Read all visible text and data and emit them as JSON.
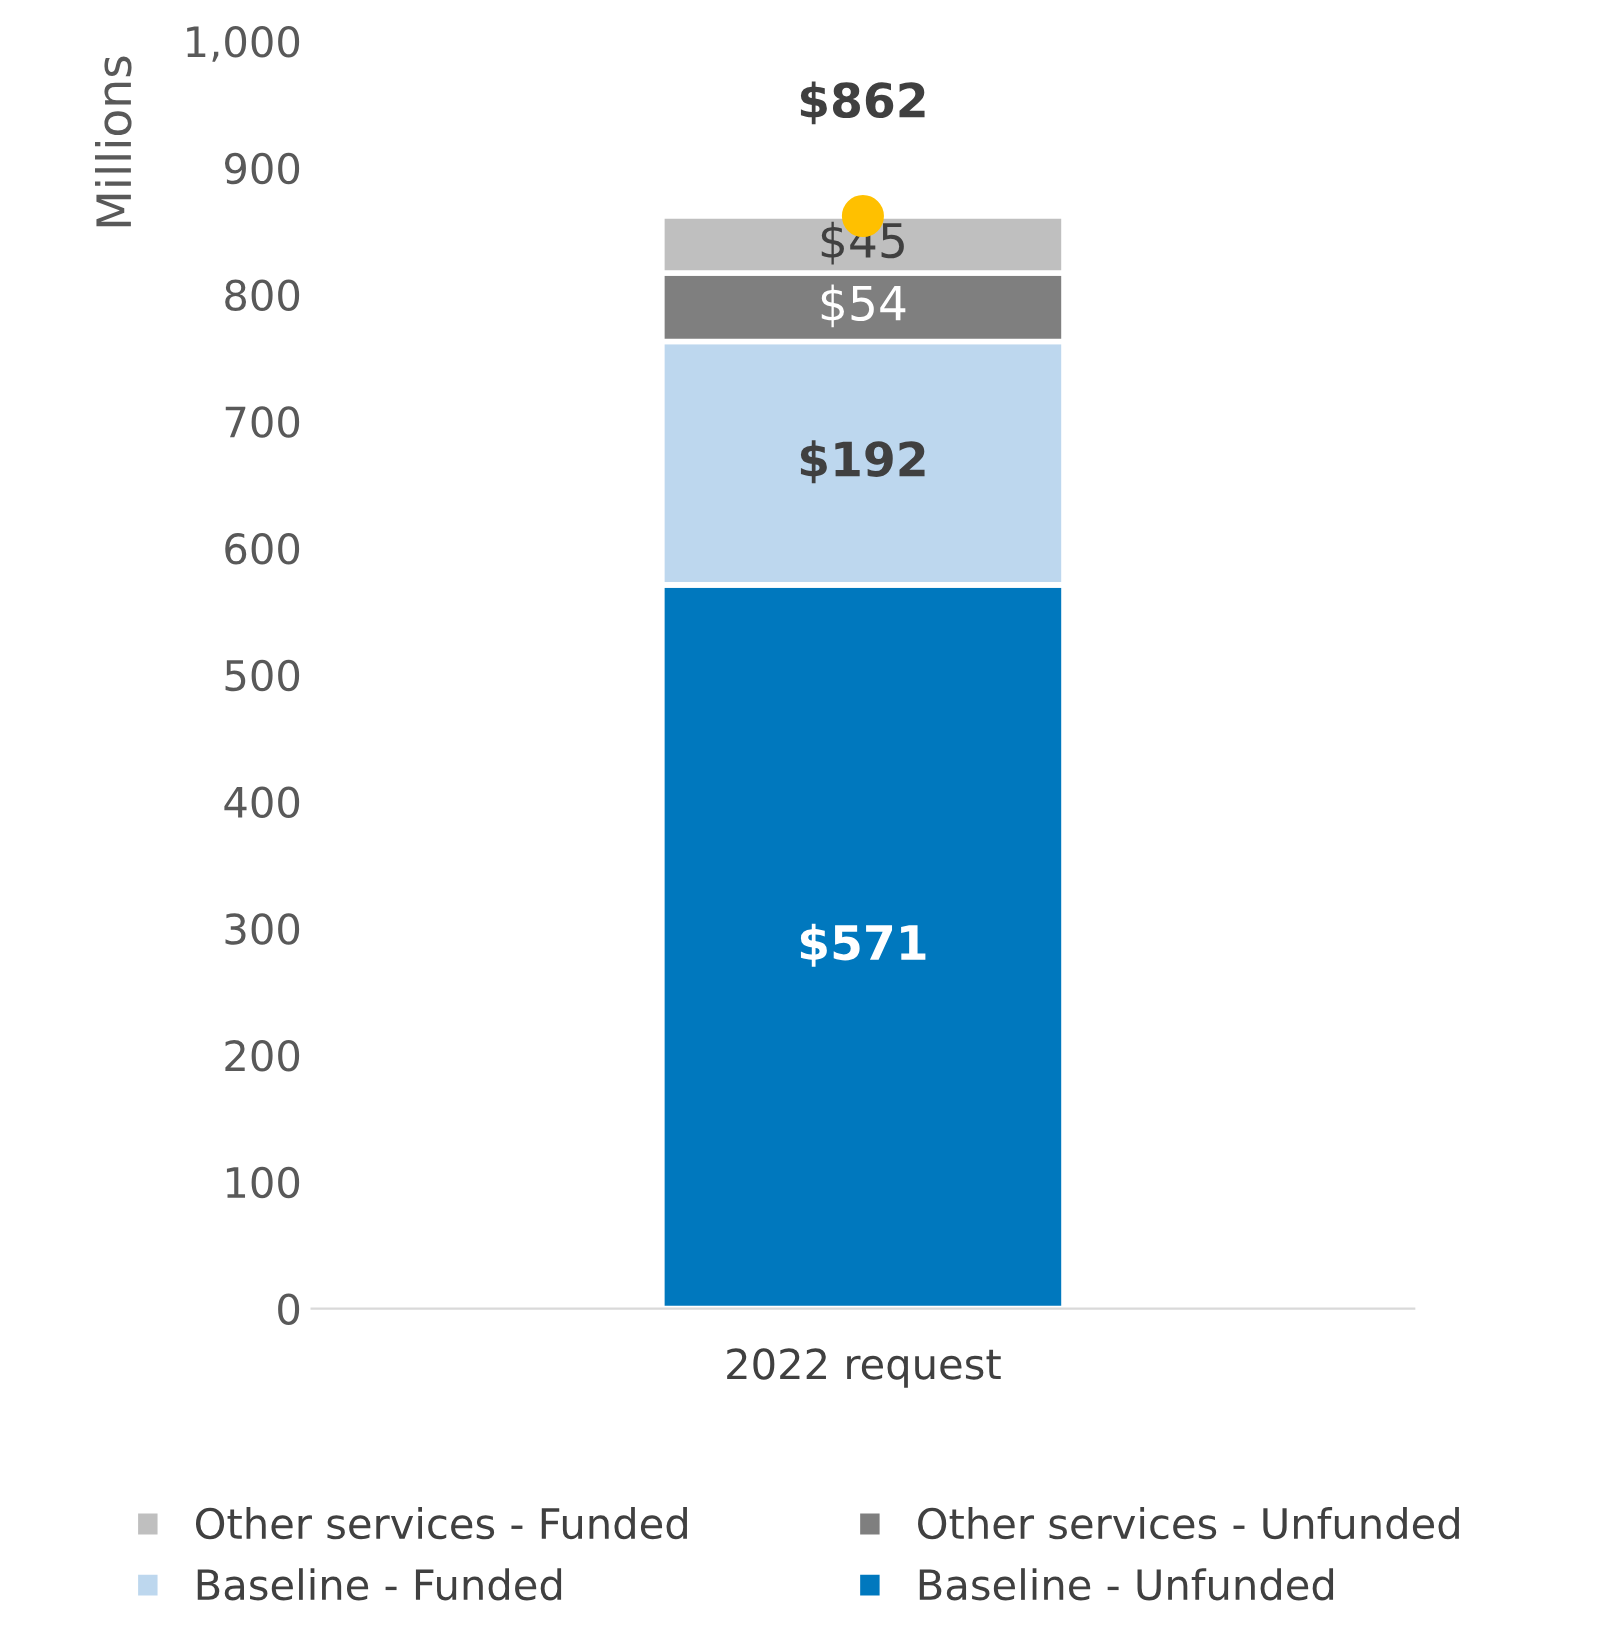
{
  "chart_data": {
    "type": "bar",
    "stacked": true,
    "ylabel": "Millions",
    "categories": [
      "2022 request"
    ],
    "series": [
      {
        "name": "Baseline - Unfunded",
        "color": "#0078be",
        "values": [
          571
        ],
        "value_labels": [
          "$571"
        ]
      },
      {
        "name": "Baseline - Funded",
        "color": "#bdd7ee",
        "values": [
          192
        ],
        "value_labels": [
          "$192"
        ]
      },
      {
        "name": "Other services - Unfunded",
        "color": "#7f7f7f",
        "values": [
          54
        ],
        "value_labels": [
          "$54"
        ]
      },
      {
        "name": "Other services - Funded",
        "color": "#bfbfbf",
        "values": [
          45
        ],
        "value_labels": [
          "$45"
        ]
      },
      {
        "type": "scatter",
        "x": [
          "2022 request"
        ],
        "color": "#ffc000",
        "values": [
          862
        ],
        "marker": "circle"
      }
    ],
    "totals": [
      "$862"
    ],
    "ylim": [
      0,
      1000
    ],
    "yticks": [
      0,
      100,
      200,
      300,
      400,
      500,
      600,
      700,
      800,
      900,
      {
        "value": 1000,
        "label": "1,000"
      }
    ],
    "grid": false,
    "legend": "bottom"
  }
}
